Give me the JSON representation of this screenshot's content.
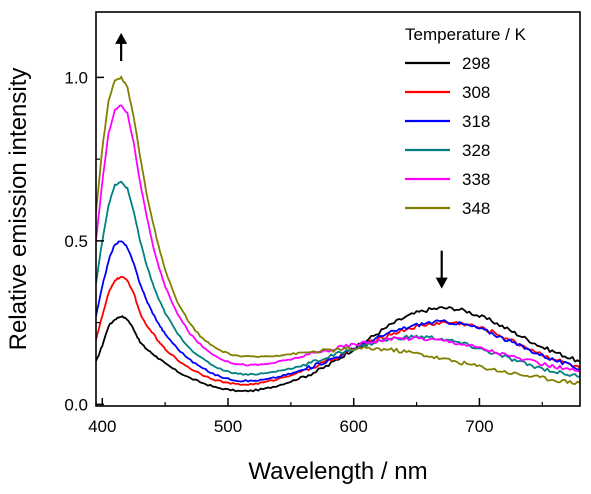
{
  "chart_data": {
    "type": "line",
    "xlabel": "Wavelength / nm",
    "ylabel": "Relative emission intensity",
    "xlim": [
      395,
      780
    ],
    "ylim": [
      -0.005,
      1.2
    ],
    "xticks": [
      400,
      500,
      600,
      700
    ],
    "yticks": [
      0.0,
      0.5,
      1.0
    ],
    "xtick_labels": [
      "400",
      "500",
      "600",
      "700"
    ],
    "ytick_labels": [
      "0.0",
      "0.5",
      "1.0"
    ],
    "legend_title": "Temperature / K",
    "legend_position": "top-right",
    "x": [
      395,
      400,
      405,
      410,
      415,
      420,
      425,
      430,
      435,
      440,
      445,
      450,
      460,
      470,
      480,
      490,
      500,
      510,
      520,
      530,
      540,
      550,
      560,
      570,
      580,
      590,
      600,
      610,
      620,
      630,
      640,
      650,
      660,
      670,
      680,
      690,
      700,
      710,
      720,
      730,
      740,
      750,
      760,
      770,
      780
    ],
    "series": [
      {
        "name": "298",
        "color": "#000000",
        "values": [
          0.13,
          0.18,
          0.24,
          0.26,
          0.27,
          0.26,
          0.23,
          0.19,
          0.17,
          0.155,
          0.14,
          0.125,
          0.1,
          0.08,
          0.065,
          0.052,
          0.045,
          0.04,
          0.042,
          0.048,
          0.058,
          0.07,
          0.085,
          0.1,
          0.12,
          0.145,
          0.17,
          0.195,
          0.22,
          0.245,
          0.265,
          0.28,
          0.29,
          0.295,
          0.293,
          0.285,
          0.27,
          0.255,
          0.235,
          0.215,
          0.195,
          0.175,
          0.16,
          0.145,
          0.13
        ]
      },
      {
        "name": "308",
        "color": "#ff0000",
        "values": [
          0.2,
          0.27,
          0.34,
          0.38,
          0.39,
          0.38,
          0.34,
          0.28,
          0.24,
          0.22,
          0.19,
          0.17,
          0.135,
          0.11,
          0.09,
          0.075,
          0.065,
          0.06,
          0.062,
          0.068,
          0.078,
          0.09,
          0.103,
          0.117,
          0.133,
          0.15,
          0.168,
          0.185,
          0.2,
          0.215,
          0.228,
          0.238,
          0.245,
          0.25,
          0.25,
          0.245,
          0.235,
          0.222,
          0.205,
          0.187,
          0.17,
          0.153,
          0.138,
          0.125,
          0.11
        ]
      },
      {
        "name": "318",
        "color": "#0000ff",
        "values": [
          0.27,
          0.36,
          0.44,
          0.49,
          0.5,
          0.48,
          0.43,
          0.37,
          0.32,
          0.28,
          0.245,
          0.215,
          0.17,
          0.135,
          0.11,
          0.09,
          0.078,
          0.072,
          0.072,
          0.076,
          0.084,
          0.094,
          0.106,
          0.12,
          0.135,
          0.152,
          0.17,
          0.188,
          0.205,
          0.22,
          0.233,
          0.243,
          0.25,
          0.253,
          0.25,
          0.243,
          0.232,
          0.218,
          0.2,
          0.183,
          0.166,
          0.15,
          0.135,
          0.122,
          0.108
        ]
      },
      {
        "name": "328",
        "color": "#008080",
        "values": [
          0.37,
          0.5,
          0.61,
          0.67,
          0.68,
          0.66,
          0.59,
          0.5,
          0.43,
          0.37,
          0.32,
          0.28,
          0.215,
          0.17,
          0.138,
          0.115,
          0.1,
          0.093,
          0.092,
          0.095,
          0.102,
          0.11,
          0.12,
          0.132,
          0.145,
          0.158,
          0.17,
          0.182,
          0.193,
          0.2,
          0.205,
          0.207,
          0.205,
          0.2,
          0.192,
          0.182,
          0.17,
          0.158,
          0.145,
          0.132,
          0.12,
          0.11,
          0.1,
          0.092,
          0.085
        ]
      },
      {
        "name": "338",
        "color": "#ff00ff",
        "values": [
          0.5,
          0.68,
          0.83,
          0.9,
          0.915,
          0.89,
          0.8,
          0.68,
          0.58,
          0.49,
          0.42,
          0.36,
          0.275,
          0.215,
          0.175,
          0.148,
          0.13,
          0.122,
          0.12,
          0.123,
          0.13,
          0.138,
          0.147,
          0.157,
          0.166,
          0.175,
          0.183,
          0.19,
          0.196,
          0.2,
          0.202,
          0.203,
          0.2,
          0.196,
          0.19,
          0.182,
          0.173,
          0.163,
          0.152,
          0.142,
          0.132,
          0.123,
          0.115,
          0.108,
          0.1
        ]
      },
      {
        "name": "348",
        "color": "#808000",
        "values": [
          0.59,
          0.78,
          0.93,
          0.99,
          1.0,
          0.97,
          0.88,
          0.76,
          0.65,
          0.56,
          0.48,
          0.41,
          0.31,
          0.245,
          0.2,
          0.172,
          0.155,
          0.147,
          0.145,
          0.147,
          0.15,
          0.154,
          0.158,
          0.162,
          0.165,
          0.168,
          0.17,
          0.171,
          0.17,
          0.167,
          0.162,
          0.156,
          0.148,
          0.14,
          0.132,
          0.124,
          0.116,
          0.108,
          0.1,
          0.093,
          0.087,
          0.081,
          0.075,
          0.07,
          0.065
        ]
      }
    ],
    "annotations": [
      {
        "type": "arrow",
        "direction": "up",
        "x": 415,
        "y_from": 1.05,
        "y_to": 1.13
      },
      {
        "type": "arrow",
        "direction": "down",
        "x": 670,
        "y_from": 0.47,
        "y_to": 0.36
      }
    ],
    "grid": false
  }
}
